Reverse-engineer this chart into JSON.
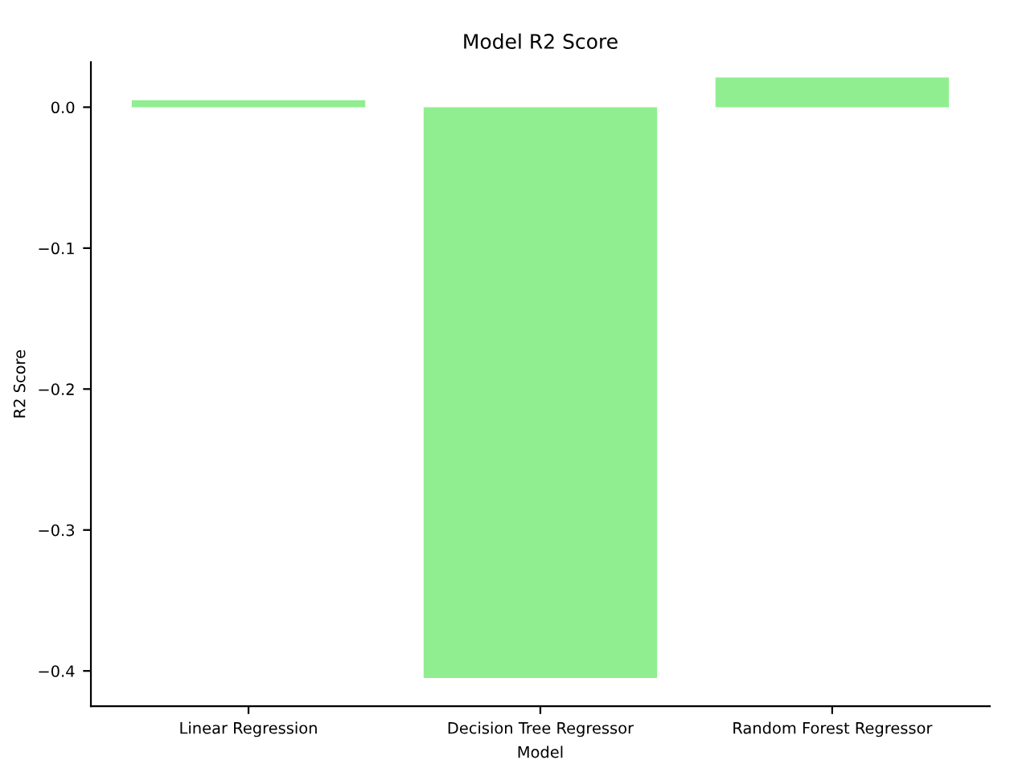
{
  "chart_data": {
    "type": "bar",
    "title": "Model R2 Score",
    "xlabel": "Model",
    "ylabel": "R2 Score",
    "categories": [
      "Linear Regression",
      "Decision Tree Regressor",
      "Random Forest Regressor"
    ],
    "values": [
      0.005,
      -0.405,
      0.021
    ],
    "color": "#90ee90",
    "ylim": [
      -0.425,
      0.032
    ],
    "yticks": [
      {
        "value": -0.4,
        "label": "−0.4"
      },
      {
        "value": -0.3,
        "label": "−0.3"
      },
      {
        "value": -0.2,
        "label": "−0.2"
      },
      {
        "value": -0.1,
        "label": "−0.1"
      },
      {
        "value": 0,
        "label": "0.0"
      }
    ],
    "grid": false,
    "legend": false
  }
}
